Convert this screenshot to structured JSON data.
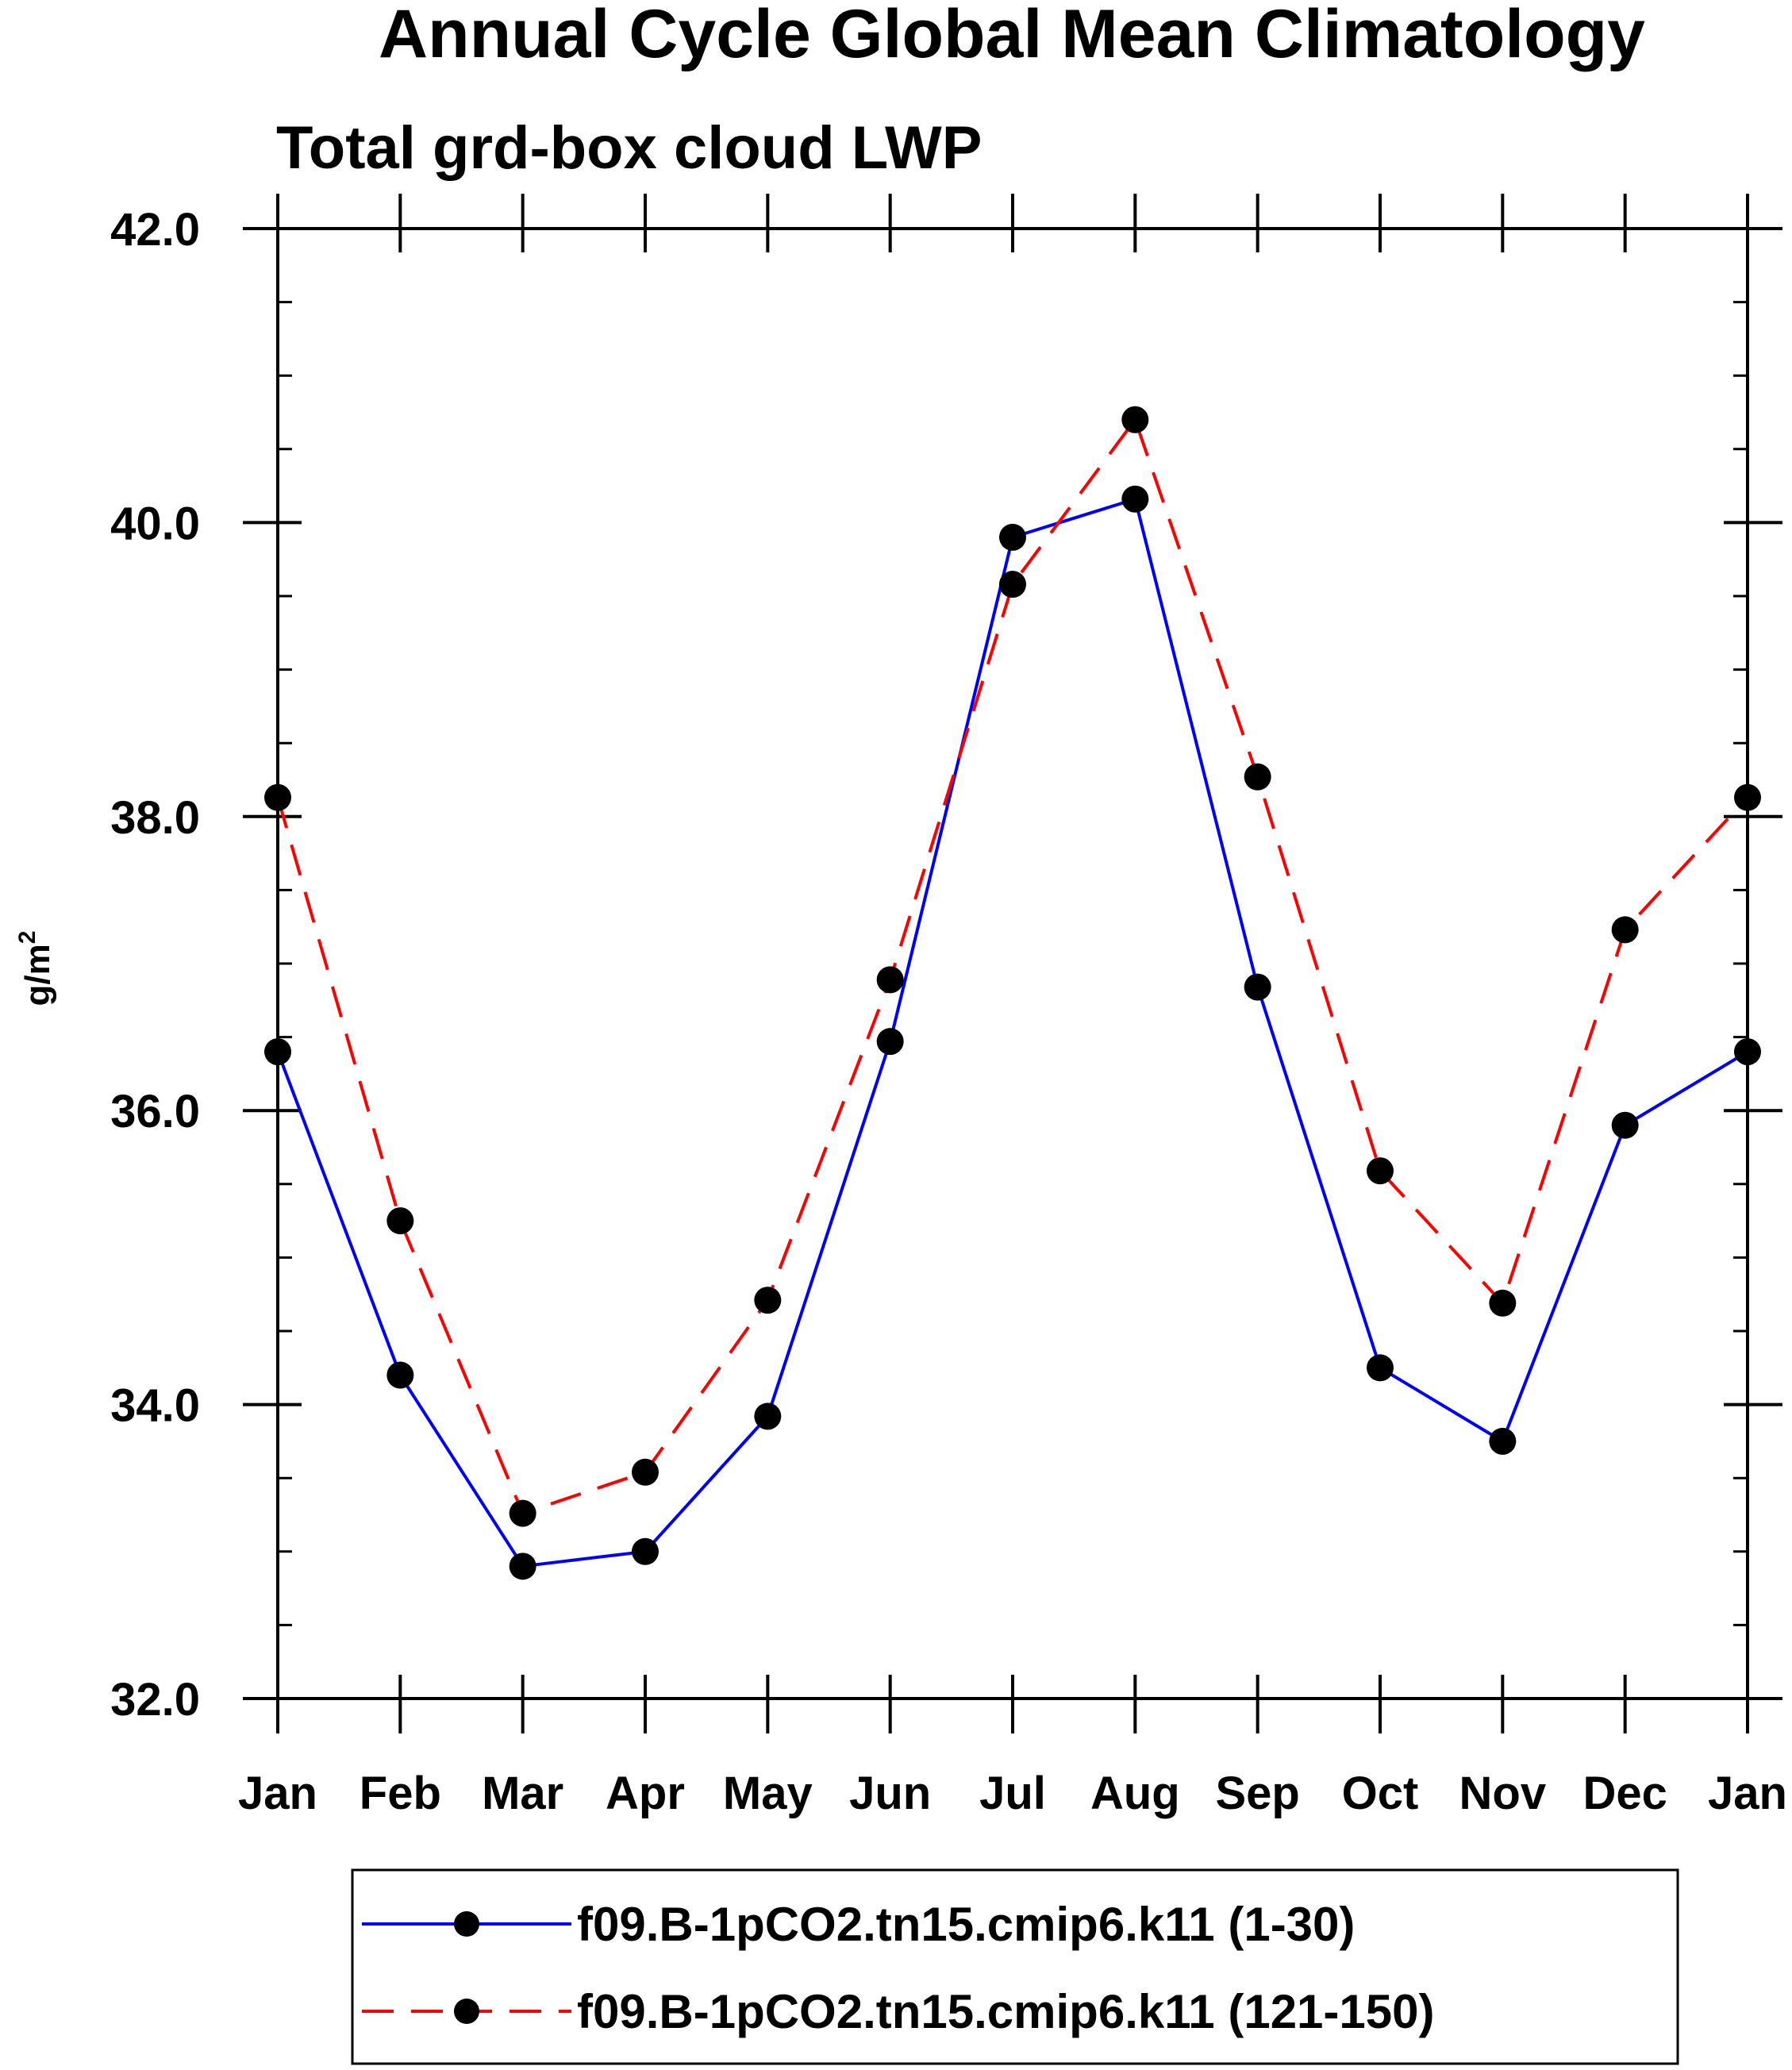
{
  "chart_data": {
    "type": "line",
    "title": "Annual Cycle Global Mean Climatology",
    "subtitle": "Total grd-box cloud LWP",
    "xlabel": "",
    "ylabel": "g/m",
    "ylabel_superscript": "2",
    "categories": [
      "Jan",
      "Feb",
      "Mar",
      "Apr",
      "May",
      "Jun",
      "Jul",
      "Aug",
      "Sep",
      "Oct",
      "Nov",
      "Dec",
      "Jan"
    ],
    "ylim": [
      32.0,
      42.0
    ],
    "yticks": [
      "32.0",
      "34.0",
      "36.0",
      "38.0",
      "40.0",
      "42.0"
    ],
    "grid": false,
    "legend_position": "bottom",
    "series": [
      {
        "name": "f09.B-1pCO2.tn15.cmip6.k11 (1-30)",
        "color": "#0000ff",
        "line_style": "solid",
        "marker": "filled-circle",
        "values": [
          36.4,
          34.2,
          32.9,
          33.0,
          33.92,
          36.47,
          39.9,
          40.16,
          36.84,
          34.25,
          33.75,
          35.9,
          36.4
        ]
      },
      {
        "name": "f09.B-1pCO2.tn15.cmip6.k11 (121-150)",
        "color": "#ff0000",
        "line_style": "dashed",
        "marker": "filled-circle",
        "values": [
          38.13,
          35.25,
          33.26,
          33.54,
          34.71,
          36.89,
          39.58,
          40.7,
          38.27,
          35.59,
          34.69,
          37.23,
          38.13
        ]
      }
    ]
  }
}
